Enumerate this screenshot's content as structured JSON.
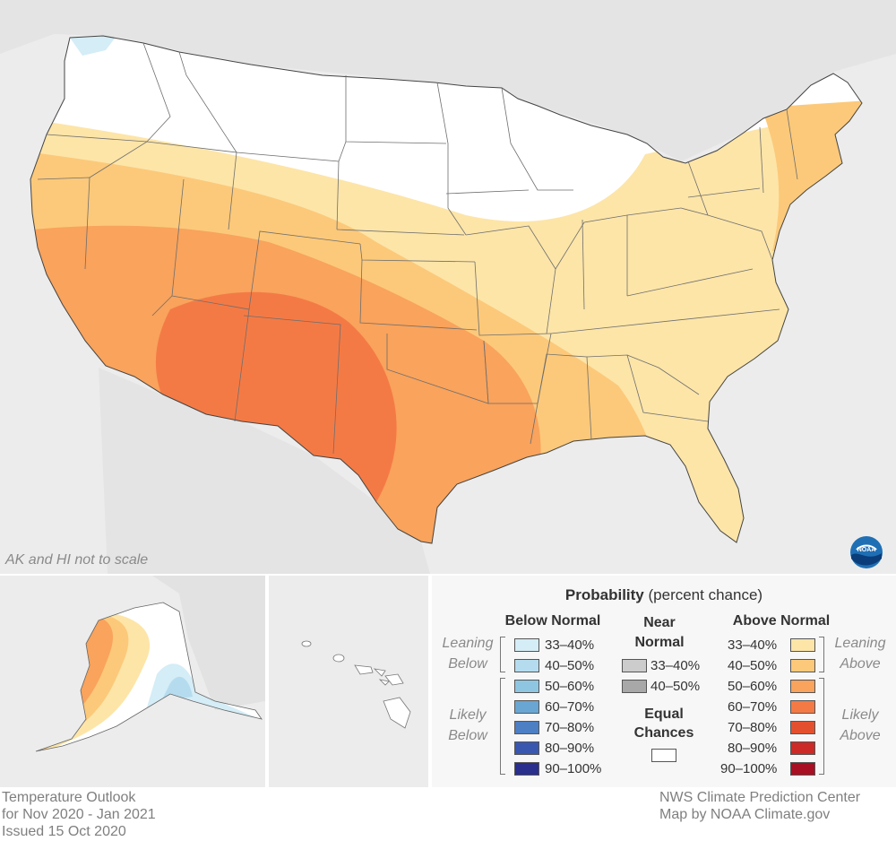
{
  "map": {
    "scale_note": "AK and HI not to scale",
    "logo_text": "NOAA",
    "colors": {
      "background": "#ececec",
      "equal_chances": "#ffffff",
      "above_33_40": "#fde5a8",
      "above_40_50": "#fcc97a",
      "above_50_60": "#f9a35c",
      "above_60_70": "#f47a45",
      "below_33_40": "#d4edf6",
      "below_40_50": "#b5dcee"
    }
  },
  "legend": {
    "title_bold": "Probability",
    "title_rest": "(percent chance)",
    "below_header": "Below Normal",
    "near_header": "Near Normal",
    "above_header": "Above Normal",
    "leaning_below": "Leaning Below",
    "likely_below": "Likely Below",
    "leaning_above": "Leaning Above",
    "likely_above": "Likely Above",
    "equal_chances": "Equal Chances",
    "below": [
      {
        "label": "33–40%",
        "color": "#d4edf6"
      },
      {
        "label": "40–50%",
        "color": "#b5dcee"
      },
      {
        "label": "50–60%",
        "color": "#8ec6e2"
      },
      {
        "label": "60–70%",
        "color": "#6aa6d3"
      },
      {
        "label": "70–80%",
        "color": "#4d7fc4"
      },
      {
        "label": "80–90%",
        "color": "#3a57b0"
      },
      {
        "label": "90–100%",
        "color": "#2a2e8c"
      }
    ],
    "near": [
      {
        "label": "33–40%",
        "color": "#cccccc"
      },
      {
        "label": "40–50%",
        "color": "#a8a8a8"
      }
    ],
    "above": [
      {
        "label": "33–40%",
        "color": "#fde5a8"
      },
      {
        "label": "40–50%",
        "color": "#fcc97a"
      },
      {
        "label": "50–60%",
        "color": "#f9a35c"
      },
      {
        "label": "60–70%",
        "color": "#f47a45"
      },
      {
        "label": "70–80%",
        "color": "#e4502e"
      },
      {
        "label": "80–90%",
        "color": "#cc2a26"
      },
      {
        "label": "90–100%",
        "color": "#a80f22"
      }
    ]
  },
  "footer": {
    "left_line1": "Temperature Outlook",
    "left_line2": "for Nov 2020 - Jan 2021",
    "left_line3": "Issued 15 Oct 2020",
    "right_line1": "NWS Climate Prediction Center",
    "right_line2": "Map by NOAA Climate.gov"
  }
}
